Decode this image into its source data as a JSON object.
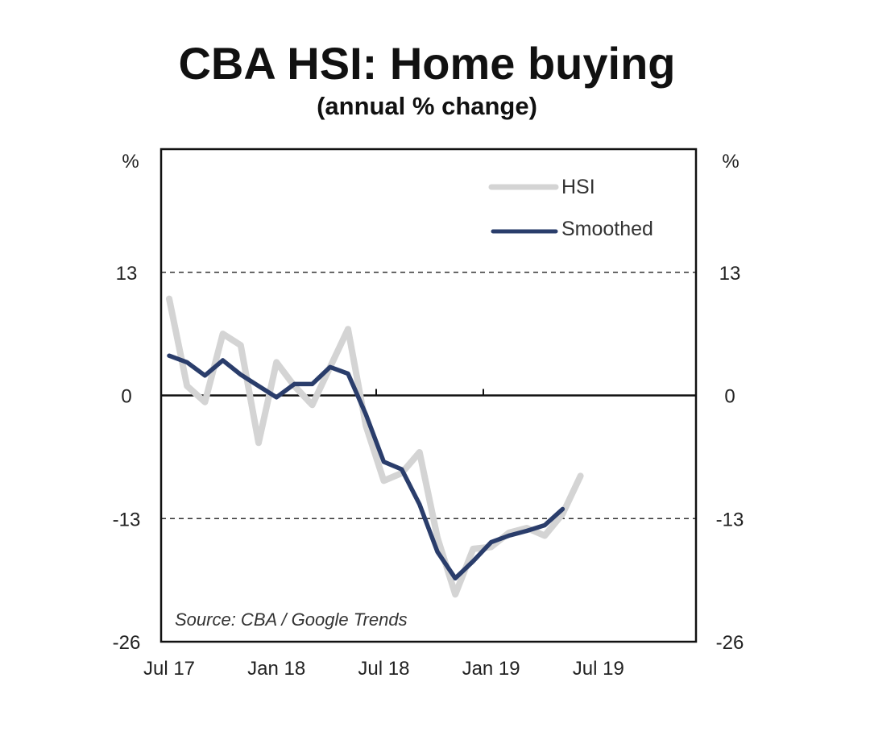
{
  "chart_data": {
    "type": "line",
    "title": "CBA HSI: Home buying",
    "subtitle": "(annual % change)",
    "left_unit": "%",
    "right_unit": "%",
    "source": "Source: CBA / Google Trends",
    "x_labels": [
      "Jul 17",
      "Jan 18",
      "Jul 18",
      "Jan 19",
      "Jul 19"
    ],
    "y_ticks": [
      "13",
      "0",
      "-13",
      "-26"
    ],
    "ylim": [
      -26,
      26
    ],
    "legend_position": "top-right",
    "dashed_gridlines": [
      13,
      -13
    ],
    "zero_line": 0,
    "series": [
      {
        "name": "HSI",
        "color": "#d4d4d4",
        "x": [
          "2017-07",
          "2017-08",
          "2017-09",
          "2017-10",
          "2017-11",
          "2017-12",
          "2018-01",
          "2018-02",
          "2018-03",
          "2018-04",
          "2018-05",
          "2018-06",
          "2018-07",
          "2018-08",
          "2018-09",
          "2018-10",
          "2018-11",
          "2018-12",
          "2019-01",
          "2019-02",
          "2019-03",
          "2019-04",
          "2019-05",
          "2019-06"
        ],
        "values": [
          10.2,
          1.0,
          -0.7,
          6.5,
          5.3,
          -5.0,
          3.5,
          1.0,
          -1.0,
          3.0,
          7.0,
          -3.2,
          -9.0,
          -8.2,
          -6.0,
          -15.0,
          -21.0,
          -16.2,
          -16.0,
          -14.5,
          -14.0,
          -14.8,
          -12.5,
          -8.5
        ]
      },
      {
        "name": "Smoothed",
        "color": "#2a3d6b",
        "x": [
          "2017-07",
          "2017-08",
          "2017-09",
          "2017-10",
          "2017-11",
          "2017-12",
          "2018-01",
          "2018-02",
          "2018-03",
          "2018-04",
          "2018-05",
          "2018-06",
          "2018-07",
          "2018-08",
          "2018-09",
          "2018-10",
          "2018-11",
          "2018-12",
          "2019-01",
          "2019-02",
          "2019-03",
          "2019-04",
          "2019-05"
        ],
        "values": [
          4.2,
          3.5,
          2.1,
          3.7,
          2.2,
          1.0,
          -0.2,
          1.2,
          1.2,
          3.0,
          2.3,
          -2.0,
          -7.0,
          -7.8,
          -11.5,
          -16.5,
          -19.3,
          -17.5,
          -15.5,
          -14.8,
          -14.3,
          -13.7,
          -12.0
        ]
      }
    ]
  }
}
